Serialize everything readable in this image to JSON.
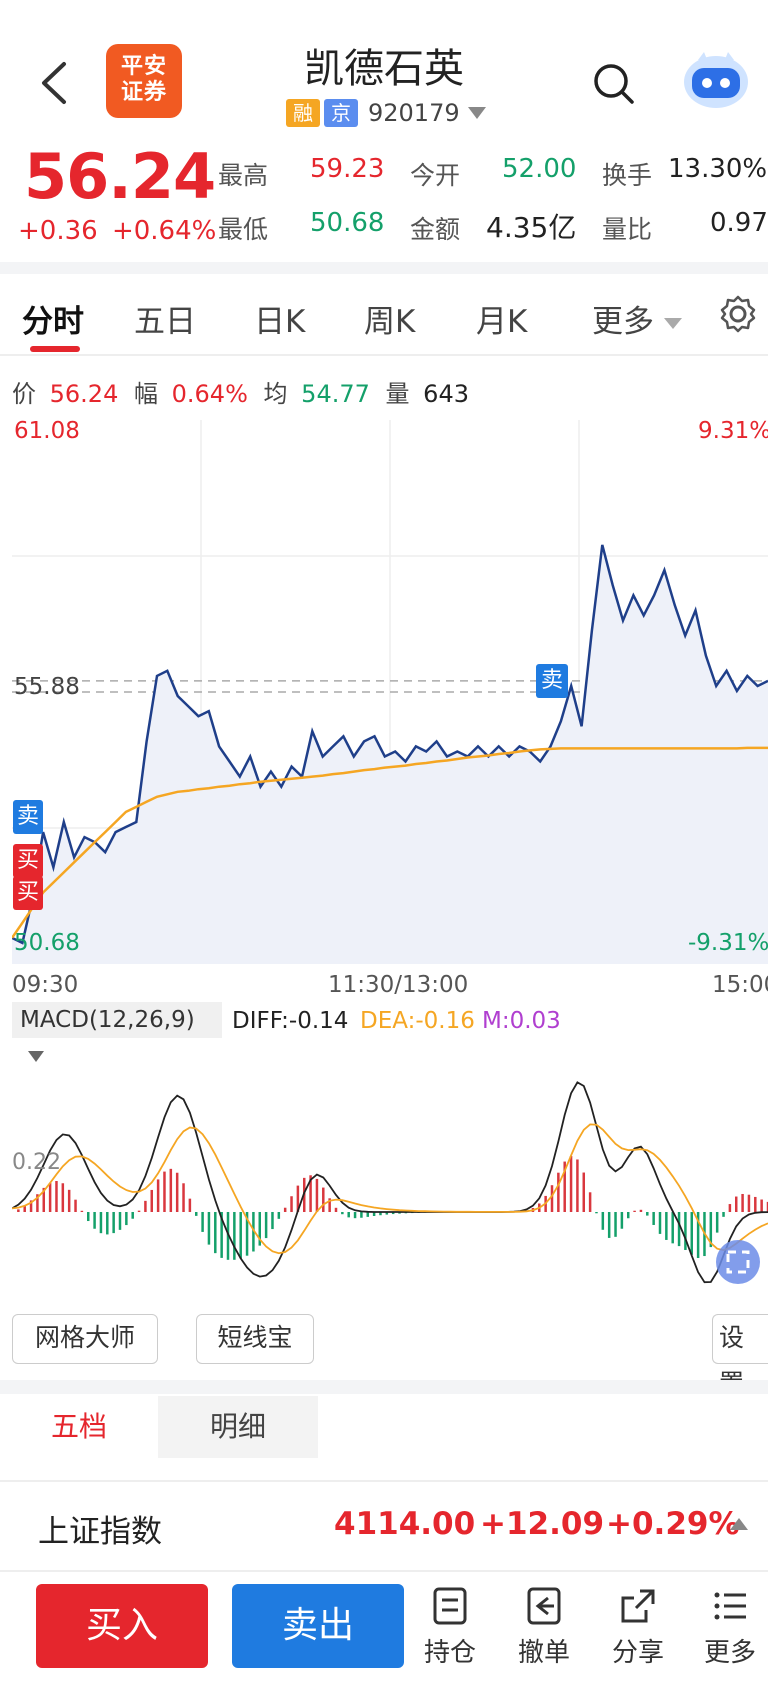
{
  "header": {
    "logo_line1": "平安",
    "logo_line2": "证券",
    "title": "凯德石英",
    "tag_rong": "融",
    "tag_jing": "京",
    "code": "920179"
  },
  "quote": {
    "price": "56.24",
    "change": "+0.36",
    "change_pct": "+0.64%",
    "high_label": "最高",
    "high": "59.23",
    "low_label": "最低",
    "low": "50.68",
    "open_label": "今开",
    "open": "52.00",
    "amount_label": "金额",
    "amount": "4.35亿",
    "turnover_label": "换手",
    "turnover": "13.30%",
    "ratio_label": "量比",
    "ratio": "0.97"
  },
  "tabs": {
    "t1": "分时",
    "t2": "五日",
    "t3": "日K",
    "t4": "周K",
    "t5": "月K",
    "t6": "更多"
  },
  "infobar": {
    "price_label": "价",
    "price": "56.24",
    "amp_label": "幅",
    "amp": "0.64%",
    "avg_label": "均",
    "avg": "54.77",
    "vol_label": "量",
    "vol": "643"
  },
  "chart_data": {
    "type": "line",
    "y_top": "61.08",
    "y_bottom": "50.68",
    "y_mid": "55.88",
    "pct_top": "9.31%",
    "pct_bottom": "-9.31%",
    "x_start": "09:30",
    "x_mid": "11:30/13:00",
    "x_end": "15:00",
    "ylim": [
      50.68,
      61.08
    ],
    "series": [
      {
        "values": [
          51.0,
          50.9,
          51.8,
          53.1,
          52.4,
          53.3,
          52.6,
          53.0,
          52.9,
          52.7,
          53.1,
          53.2,
          53.3,
          54.9,
          56.2,
          56.3,
          55.8,
          55.6,
          55.4,
          55.5,
          54.8,
          54.5,
          54.2,
          54.6,
          54.0,
          54.3,
          54.0,
          54.4,
          54.2,
          55.1,
          54.6,
          54.8,
          55.0,
          54.6,
          54.9,
          55.0,
          54.6,
          54.7,
          54.5,
          54.8,
          54.7,
          54.9,
          54.6,
          54.7,
          54.6,
          54.8,
          54.6,
          54.8,
          54.6,
          54.8,
          54.7,
          54.5,
          54.8,
          55.3,
          56.0,
          55.2,
          57.1,
          58.8,
          58.0,
          57.3,
          57.8,
          57.4,
          57.8,
          58.3,
          57.6,
          57.0,
          57.5,
          56.6,
          56.0,
          56.3,
          55.9,
          56.2,
          56.0,
          56.1
        ]
      },
      {
        "values": [
          51.0,
          51.3,
          51.6,
          51.9,
          52.1,
          52.3,
          52.5,
          52.7,
          52.9,
          53.1,
          53.3,
          53.5,
          53.6,
          53.7,
          53.8,
          53.85,
          53.9,
          53.92,
          53.95,
          53.97,
          54.0,
          54.02,
          54.05,
          54.07,
          54.1,
          54.12,
          54.14,
          54.16,
          54.18,
          54.2,
          54.22,
          54.25,
          54.27,
          54.3,
          54.33,
          54.35,
          54.38,
          54.4,
          54.42,
          54.45,
          54.47,
          54.5,
          54.52,
          54.55,
          54.58,
          54.6,
          54.62,
          54.65,
          54.67,
          54.7,
          54.72,
          54.74,
          54.75,
          54.76,
          54.76,
          54.76,
          54.76,
          54.76,
          54.76,
          54.76,
          54.76,
          54.76,
          54.76,
          54.76,
          54.76,
          54.76,
          54.76,
          54.76,
          54.76,
          54.76,
          54.76,
          54.77,
          54.77,
          54.77
        ]
      }
    ]
  },
  "macd": {
    "label": "MACD(12,26,9)",
    "diff": "DIFF:-0.14",
    "dea": "DEA:-0.16",
    "m": "M:0.03",
    "level": "0.22"
  },
  "tools": {
    "grid": "网格大师",
    "short": "短线宝",
    "settings": "设置"
  },
  "panel": {
    "tab1": "五档",
    "tab2": "明细"
  },
  "index": {
    "name": "上证指数",
    "value": "4114.00",
    "change": "+12.09",
    "pct": "+0.29%"
  },
  "bottom": {
    "buy": "买入",
    "sell": "卖出",
    "hold": "持仓",
    "cancel": "撤单",
    "share": "分享",
    "more": "更多"
  },
  "markers": {
    "sell": "卖",
    "buy": "买"
  }
}
